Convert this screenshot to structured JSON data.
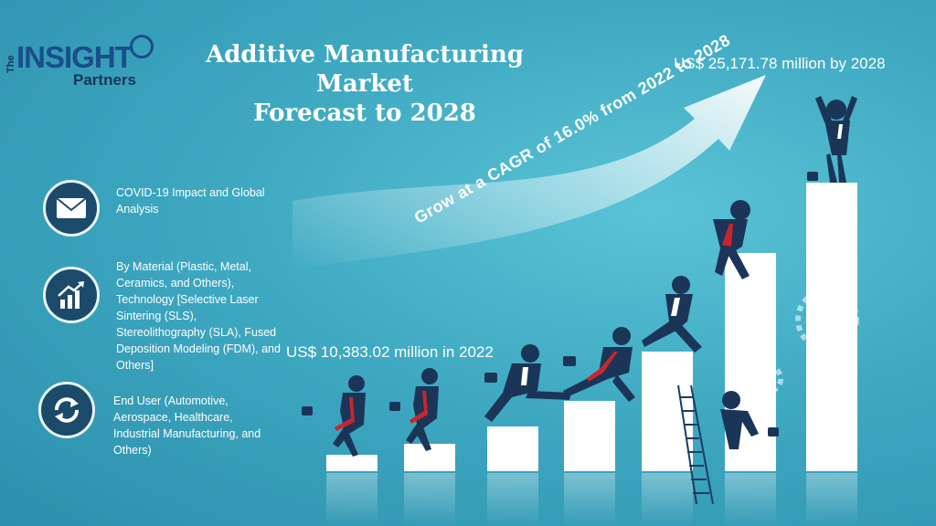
{
  "brand": {
    "the": "The",
    "insight": "INSIGHT",
    "partners": "Partners"
  },
  "title": {
    "line1": "Additive Manufacturing Market",
    "line2": "Forecast to 2028"
  },
  "values": {
    "end_value": "US$ 25,171.78 million by 2028",
    "start_value": "US$ 10,383.02 million in 2022",
    "cagr": "Grow at a CAGR of 16.0% from 2022 to 2028"
  },
  "segments": [
    {
      "icon": "envelope-icon",
      "text": "COVID-19 Impact and Global Analysis"
    },
    {
      "icon": "growth-chart-icon",
      "text": "By Material (Plastic, Metal, Ceramics, and Others), Technology [Selective Laser Sintering (SLS), Stereolithography (SLA), Fused Deposition Modeling (FDM), and Others]"
    },
    {
      "icon": "recycle-arrows-icon",
      "text": "End User (Automotive, Aerospace, Healthcare, Industrial Manufacturing, and Others)"
    }
  ],
  "colors": {
    "background": "#3fa9c2",
    "icon_circle": "#1b4a6b",
    "logo_blue": "#1a4d8c"
  }
}
